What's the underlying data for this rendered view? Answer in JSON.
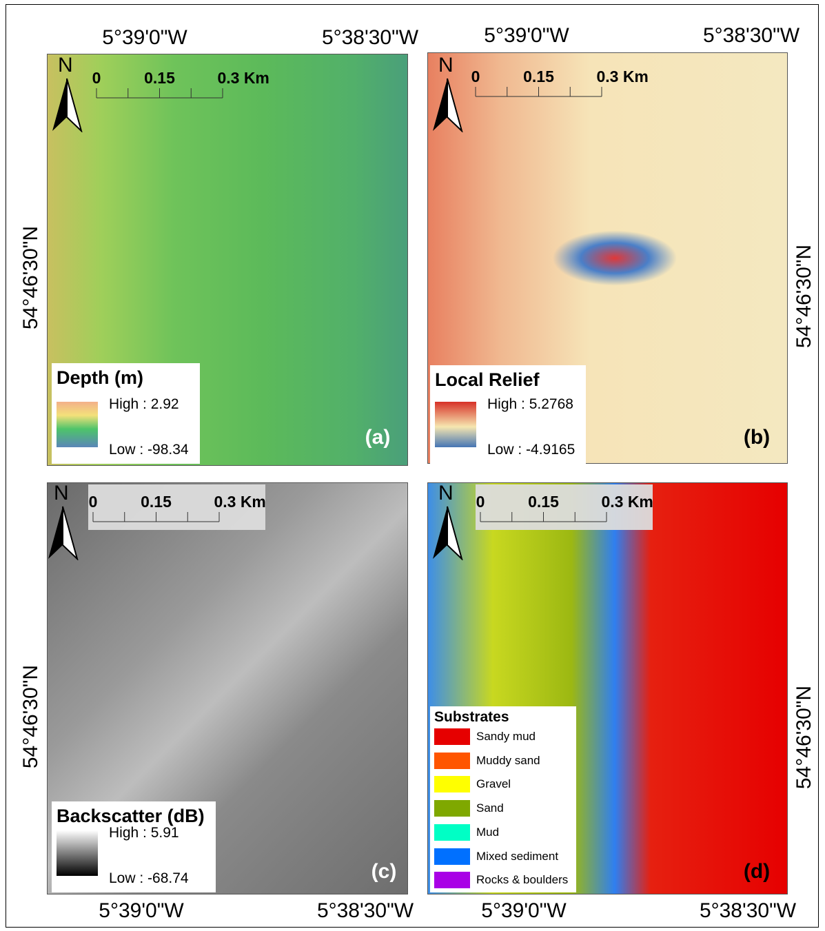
{
  "panels": [
    {
      "letter": "(a)",
      "north": "N",
      "scale_labels": [
        "0",
        "0.15",
        "0.3 Km"
      ],
      "lon_labels": [
        "5°39'0\"W",
        "5°38'30\"W"
      ],
      "lat_label": "54°46'30\"N",
      "legend": {
        "title": "Depth (m)",
        "high": "High : 2.92",
        "low": "Low : -98.34"
      }
    },
    {
      "letter": "(b)",
      "north": "N",
      "scale_labels": [
        "0",
        "0.15",
        "0.3 Km"
      ],
      "lon_labels": [
        "5°39'0\"W",
        "5°38'30\"W"
      ],
      "lat_label": "54°46'30\"N",
      "legend": {
        "title": "Local Relief",
        "high": "High : 5.2768",
        "low": "Low : -4.9165"
      }
    },
    {
      "letter": "(c)",
      "north": "N",
      "scale_labels": [
        "0",
        "0.15",
        "0.3 Km"
      ],
      "lon_labels": [
        "5°39'0\"W",
        "5°38'30\"W"
      ],
      "lat_label": "54°46'30\"N",
      "legend": {
        "title": "Backscatter (dB)",
        "high": "High : 5.91",
        "low": "Low : -68.74"
      }
    },
    {
      "letter": "(d)",
      "north": "N",
      "scale_labels": [
        "0",
        "0.15",
        "0.3 Km"
      ],
      "lon_labels": [
        "5°39'0\"W",
        "5°38'30\"W"
      ],
      "lat_label": "54°46'30\"N",
      "legend": {
        "title": "Substrates",
        "classes": [
          {
            "name": "Sandy mud",
            "color": "#e60000"
          },
          {
            "name": "Muddy sand",
            "color": "#ff5500"
          },
          {
            "name": "Gravel",
            "color": "#ffff00"
          },
          {
            "name": "Sand",
            "color": "#7fa800"
          },
          {
            "name": "Mud",
            "color": "#00ffc5"
          },
          {
            "name": "Mixed sediment",
            "color": "#0070ff"
          },
          {
            "name": "Rocks & boulders",
            "color": "#a900e6"
          }
        ]
      }
    }
  ]
}
